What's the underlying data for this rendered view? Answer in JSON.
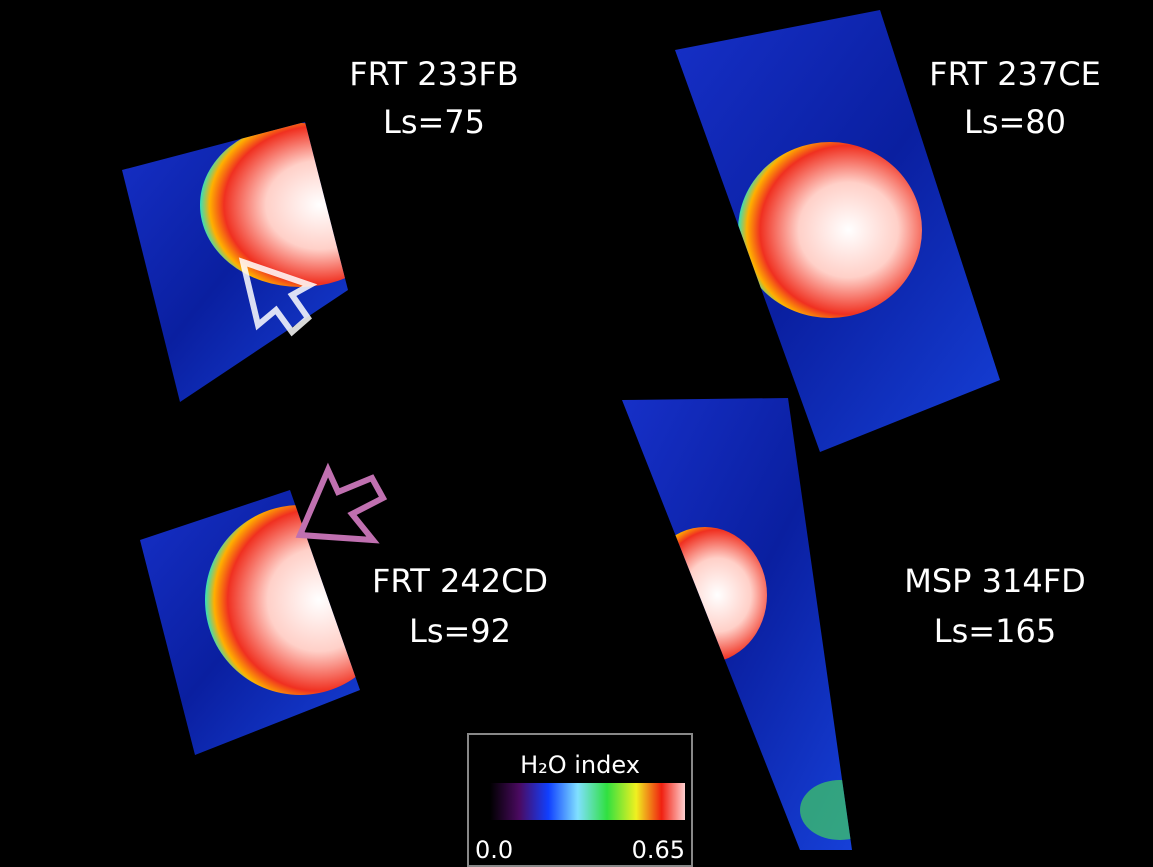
{
  "panels": [
    {
      "name": "FRT 233FB",
      "season": "Ls=75"
    },
    {
      "name": "FRT 237CE",
      "season": "Ls=80"
    },
    {
      "name": "FRT 242CD",
      "season": "Ls=92"
    },
    {
      "name": "MSP 314FD",
      "season": "Ls=165"
    }
  ],
  "colorbar": {
    "title": "H₂O index",
    "min_label": "0.0",
    "max_label": "0.65"
  }
}
